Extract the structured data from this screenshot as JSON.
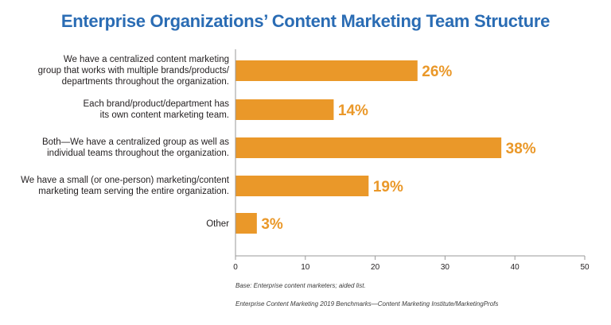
{
  "title": "Enterprise Organizations’ Content Marketing Team Structure",
  "notes": {
    "base": "Base: Enterprise content marketers; aided list.",
    "source": "Enterprise Content Marketing 2019 Benchmarks—Content Marketing Institute/MarketingProfs"
  },
  "colors": {
    "bar": "#ea9829",
    "label": "#ea9829",
    "title": "#2a6cb4"
  },
  "chart_data": {
    "type": "bar",
    "orientation": "horizontal",
    "title": "Enterprise Organizations’ Content Marketing Team Structure",
    "categories": [
      "We have a centralized content marketing\ngroup that works with multiple brands/products/\ndepartments throughout the organization.",
      "Each brand/product/department has\nits own content marketing team.",
      "Both—We have a centralized group as well as\nindividual teams  throughout the organization.",
      "We have a small (or one-person) marketing/content\nmarketing team serving the entire organization.",
      "Other"
    ],
    "values": [
      26,
      14,
      38,
      19,
      3
    ],
    "data_labels": [
      "26%",
      "14%",
      "38%",
      "19%",
      "3%"
    ],
    "xlim": [
      0,
      50
    ],
    "xticks": [
      0,
      10,
      20,
      30,
      40,
      50
    ],
    "grid": false,
    "legend": "none"
  }
}
